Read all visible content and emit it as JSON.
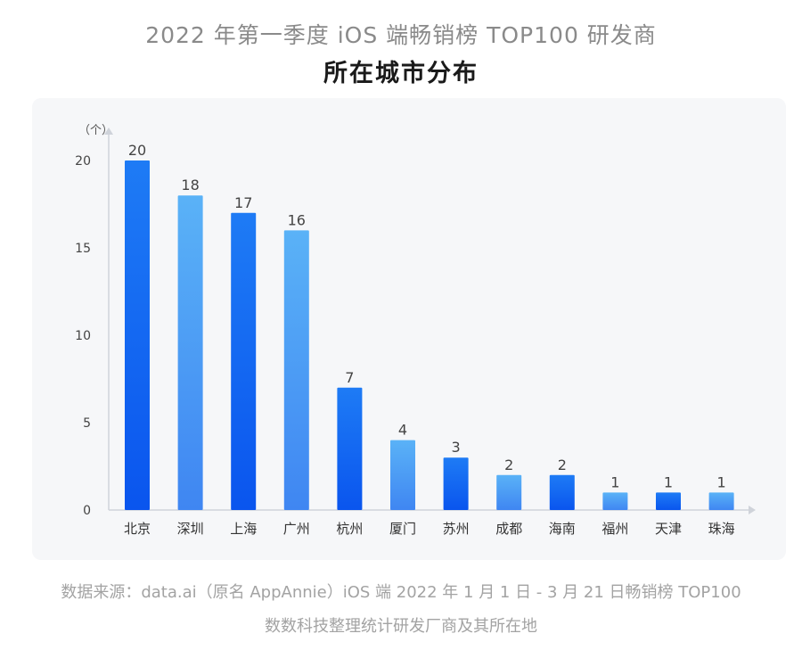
{
  "title": {
    "line1": "2022 年第一季度 iOS 端畅销榜 TOP100 研发商",
    "line2": "所在城市分布"
  },
  "chart_data": {
    "type": "bar",
    "categories": [
      "北京",
      "深圳",
      "上海",
      "广州",
      "杭州",
      "厦门",
      "苏州",
      "成都",
      "海南",
      "福州",
      "天津",
      "珠海"
    ],
    "values": [
      20,
      18,
      17,
      16,
      7,
      4,
      3,
      2,
      2,
      1,
      1,
      1
    ],
    "ylabel": "（个）",
    "yticks": [
      0,
      5,
      10,
      15,
      20
    ],
    "ylim": [
      0,
      21
    ],
    "grid": false,
    "legend": "none",
    "colors": {
      "primary": "#0a5ff0",
      "secondary": "#4aa4f5"
    }
  },
  "footer": {
    "source": "数据来源：data.ai（原名 AppAnnie）iOS 端 2022 年 1 月 1 日 - 3 月 21 日畅销榜 TOP100",
    "note": "数数科技整理统计研发厂商及其所在地"
  }
}
